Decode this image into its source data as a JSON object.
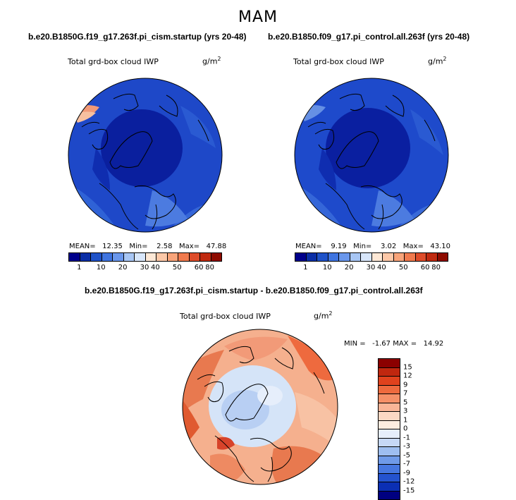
{
  "season": "MAM",
  "panels": {
    "left": {
      "case": "b.e20.B1850G.f19_g17.263f.pi_cism.startup (yrs 20-48)",
      "variable": "Total grd-box cloud IWP",
      "units_base": "g/m",
      "units_exp": "2",
      "stats": "MEAN=   12.35   Min=    2.58   Max=   47.88"
    },
    "right": {
      "case": "b.e20.B1850.f09_g17.pi_control.all.263f (yrs 20-48)",
      "variable": "Total grd-box cloud IWP",
      "units_base": "g/m",
      "units_exp": "2",
      "stats": "MEAN=    9.19   Min=    3.02   Max=   43.10"
    },
    "diff": {
      "case": "b.e20.B1850G.f19_g17.263f.pi_cism.startup - b.e20.B1850.f09_g17.pi_control.all.263f",
      "variable": "Total grd-box cloud IWP",
      "units_base": "g/m",
      "units_exp": "2",
      "stats": "MIN =   -1.67 MAX =   14.92"
    }
  },
  "abs_colorbar": {
    "colors": [
      "#00008b",
      "#0a2ea6",
      "#1f52c8",
      "#3f74e0",
      "#6a97ec",
      "#a8c6f4",
      "#d8e6fa",
      "#fde8d6",
      "#fcc8a8",
      "#f8a47a",
      "#f07a4e",
      "#de4c2a",
      "#c02a10",
      "#8e0b00"
    ],
    "labels": [
      "1",
      "10",
      "20",
      "30",
      "40",
      "50",
      "60",
      "80"
    ],
    "label_positions": [
      0.071,
      0.214,
      0.357,
      0.5,
      0.571,
      0.714,
      0.857,
      0.929
    ]
  },
  "diff_colorbar": {
    "colors": [
      "#8b0000",
      "#c0270f",
      "#e0421d",
      "#ee6a3e",
      "#f59068",
      "#f9b597",
      "#fcd8c4",
      "#fdece0",
      "#e6eefb",
      "#c6d8f6",
      "#9ebef0",
      "#6f9ae8",
      "#4677e0",
      "#2453cf",
      "#0b2fb4",
      "#000080"
    ],
    "labels": [
      "15",
      "12",
      "9",
      "7",
      "5",
      "3",
      "1",
      "0",
      "-1",
      "-3",
      "-5",
      "-7",
      "-9",
      "-12",
      "-15"
    ]
  },
  "maps": {
    "left": {
      "ocean": "#1e48c8",
      "pole": "#0a1f9e",
      "band": "#2f62d6",
      "warm": "#f29a78"
    },
    "right": {
      "ocean": "#1e4acb",
      "pole": "#0a1fa0",
      "band": "#3566d8",
      "warm": "#6690e4"
    },
    "diff": {
      "edge": "#e8794f",
      "mid": "#f5b08e",
      "pale": "#fde2cf",
      "center": "#d5e4f8",
      "center2": "#b8cff3"
    }
  }
}
